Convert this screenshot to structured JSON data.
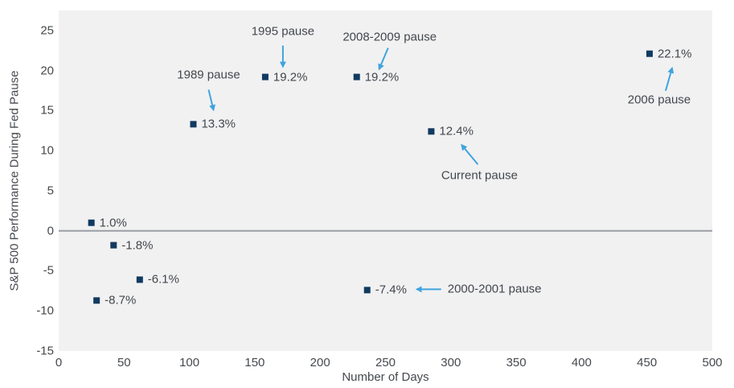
{
  "chart_data": {
    "type": "scatter",
    "xlabel": "Number of Days",
    "ylabel": "S&P 500 Performance During Fed Pause",
    "xlim": [
      0,
      500
    ],
    "ylim": [
      -15,
      27.5
    ],
    "x_ticks": [
      0,
      50,
      100,
      150,
      200,
      250,
      300,
      350,
      400,
      450,
      500
    ],
    "y_ticks": [
      25,
      20,
      15,
      10,
      5,
      0,
      -5,
      -10,
      -15
    ],
    "grid": false,
    "zero_line": true,
    "legend": "none",
    "marker_shape": "square",
    "colors": {
      "plot_background": "#f1f1f2",
      "marker": "#113a60",
      "arrow": "#41a3dd",
      "text": "#45494e",
      "zero_line": "#9b9ea3"
    },
    "points": [
      {
        "days": 25,
        "value": 1.0,
        "label": "1.0%"
      },
      {
        "days": 42,
        "value": -1.8,
        "label": "-1.8%"
      },
      {
        "days": 62,
        "value": -6.1,
        "label": "-6.1%"
      },
      {
        "days": 29,
        "value": -8.7,
        "label": "-8.7%"
      },
      {
        "days": 103,
        "value": 13.3,
        "label": "13.3%",
        "annotation": "1989 pause"
      },
      {
        "days": 158,
        "value": 19.2,
        "label": "19.2%",
        "annotation": "1995 pause"
      },
      {
        "days": 228,
        "value": 19.2,
        "label": "19.2%",
        "annotation": "2008-2009 pause"
      },
      {
        "days": 236,
        "value": -7.4,
        "label": "-7.4%",
        "annotation": "2000-2001 pause"
      },
      {
        "days": 285,
        "value": 12.4,
        "label": "12.4%",
        "annotation": "Current pause"
      },
      {
        "days": 452,
        "value": 22.1,
        "label": "22.1%",
        "annotation": "2006 pause"
      }
    ]
  }
}
